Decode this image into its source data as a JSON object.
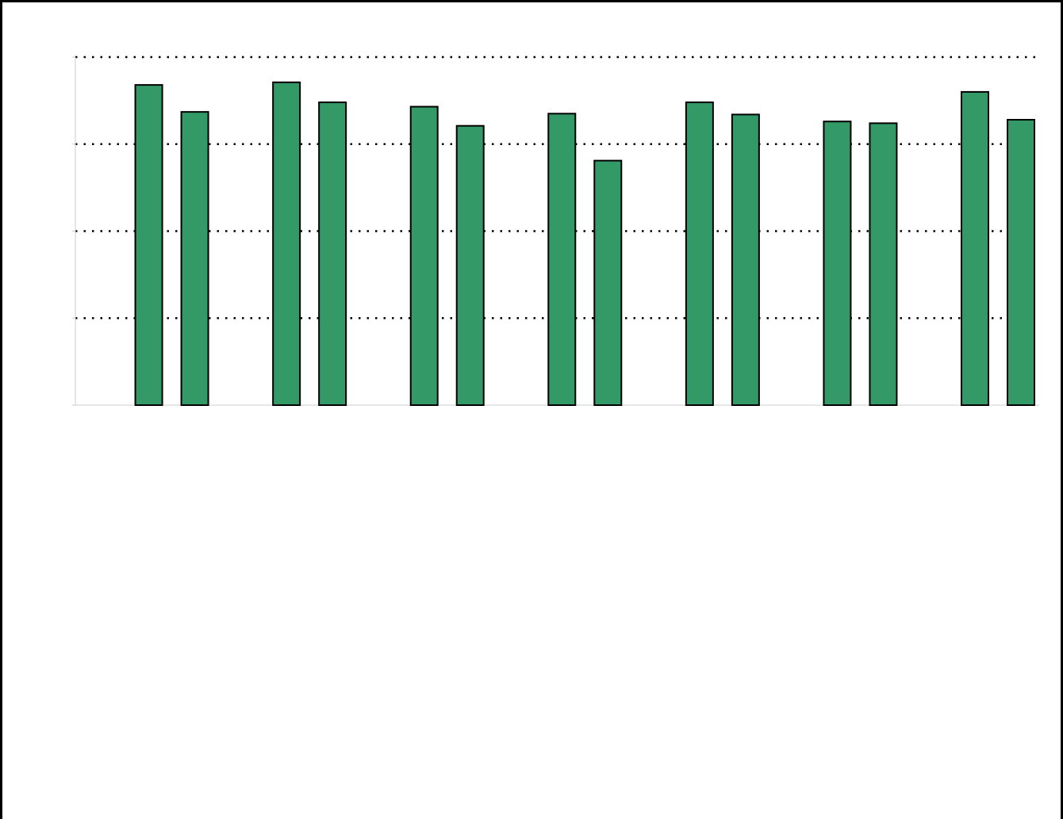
{
  "chart_data": {
    "type": "bar",
    "title": "",
    "xlabel": "",
    "ylabel": "",
    "ylim": [
      0,
      4
    ],
    "grid": true,
    "legend": "none",
    "bar_color": "#339966",
    "bar_edge_color": "#000000",
    "gridline_color": "#000000",
    "categories": [
      "",
      "",
      "",
      "",
      "",
      "",
      ""
    ],
    "series": [
      {
        "values": [
          3.68,
          3.71,
          3.43,
          3.35,
          3.48,
          3.26,
          3.6
        ]
      },
      {
        "values": [
          3.37,
          3.48,
          3.21,
          2.81,
          3.34,
          3.24,
          3.28
        ]
      }
    ]
  }
}
